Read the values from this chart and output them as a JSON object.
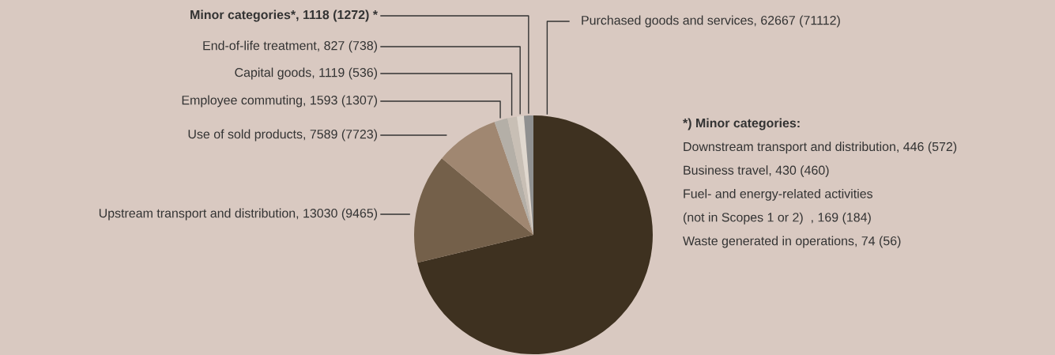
{
  "chart_data": {
    "type": "pie",
    "categories": [
      "Purchased goods and services, 62667 (71112)",
      "Upstream transport and distribution, 13030 (9465)",
      "Use of sold products, 7589 (7723)",
      "Employee commuting, 1593 (1307)",
      "Capital goods, 1119 (536)",
      "End-of-life treatment, 827 (738)",
      "Minor categories*, 1118 (1272) *"
    ],
    "values": [
      62667,
      13030,
      7589,
      1593,
      1119,
      827,
      1118
    ],
    "colors": [
      "#3e3120",
      "#74604a",
      "#a08771",
      "#b4afa7",
      "#c8bfb5",
      "#e0d8cf",
      "#8f9090"
    ],
    "annotations": [
      "*) Minor categories:",
      "Downstream transport and distribution, 446 (572)",
      "Business travel, 430 (460)",
      "Fuel- and energy-related activities",
      "(not in Scopes 1 or 2)  , 169 (184)",
      "Waste generated in operations, 74 (56)"
    ]
  }
}
